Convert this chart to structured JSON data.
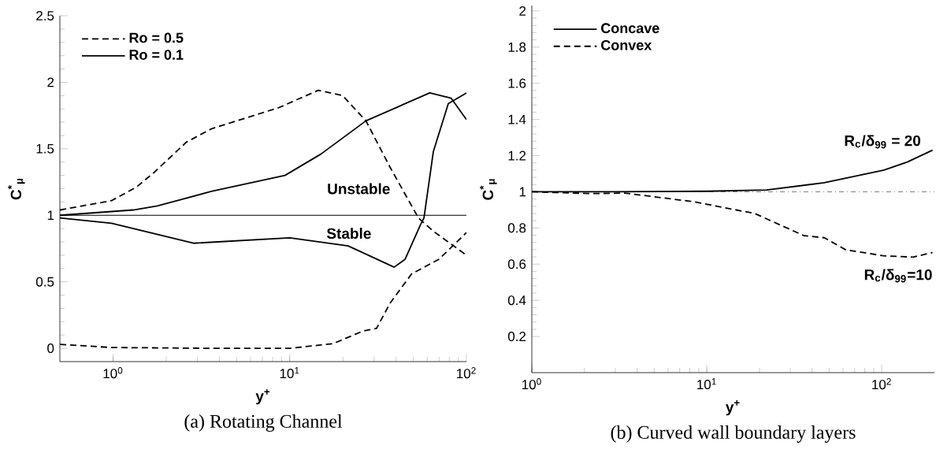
{
  "chart_data": [
    {
      "type": "line",
      "title": "(a) Rotating Channel",
      "xlabel": "y$^{+}$",
      "ylabel": "C$^{*}$$_{μ}$",
      "log": "x",
      "xlim": [
        0.5,
        100
      ],
      "ylim": [
        -0.1,
        2.5
      ],
      "xticks": [
        {
          "value": 1,
          "label": "10$^{0}$"
        },
        {
          "value": 10,
          "label": "10$^{1}$"
        },
        {
          "value": 100,
          "label": "10$^{2}$"
        }
      ],
      "yticks": [
        0,
        0.5,
        1,
        1.5,
        2,
        2.5
      ],
      "legend": "top left",
      "ref_lines": [
        {
          "axis": "y",
          "value": 1,
          "color": "#000000",
          "line_style": "solid"
        }
      ],
      "annotations": [
        "Unstable",
        "Stable"
      ],
      "series": [
        {
          "name": "Ro = 0.5",
          "color": "#000000",
          "line_style": "dashed",
          "x": [
            0.5,
            0.98,
            1.35,
            1.7,
            2.6,
            3.6,
            8.7,
            14.5,
            19.9,
            27,
            37,
            53.5,
            65,
            100,
            null,
            0.5,
            0.98,
            3.6,
            10,
            17.6,
            26,
            31,
            37,
            49,
            70,
            100
          ],
          "values": [
            1.04,
            1.11,
            1.21,
            1.32,
            1.55,
            1.65,
            1.81,
            1.94,
            1.9,
            1.71,
            1.36,
            0.98,
            0.88,
            0.7,
            null,
            0.03,
            0.006,
            0.0,
            0.0,
            0.035,
            0.13,
            0.15,
            0.34,
            0.56,
            0.67,
            0.87
          ]
        },
        {
          "name": "Ro = 0.1",
          "color": "#000000",
          "line_style": "solid",
          "x": [
            0.5,
            1.3,
            1.78,
            3.6,
            9.4,
            15,
            27,
            62,
            82,
            100,
            null,
            0.5,
            0.98,
            2.85,
            10,
            21.4,
            39,
            45,
            55,
            57.5,
            65,
            79,
            100
          ],
          "values": [
            1.0,
            1.04,
            1.07,
            1.18,
            1.3,
            1.46,
            1.71,
            1.92,
            1.88,
            1.72,
            null,
            0.98,
            0.94,
            0.79,
            0.83,
            0.77,
            0.61,
            0.67,
            0.93,
            0.98,
            1.48,
            1.84,
            1.92
          ]
        }
      ]
    },
    {
      "type": "line",
      "title": "(b) Curved wall boundary layers",
      "xlabel": "y$^{+}$",
      "ylabel": "C$^{*}$$_{μ}$",
      "log": "x",
      "xlim": [
        1,
        200
      ],
      "ylim": [
        0,
        2.03
      ],
      "xticks": [
        {
          "value": 1,
          "label": "10$^{0}$"
        },
        {
          "value": 10,
          "label": "10$^{1}$"
        },
        {
          "value": 100,
          "label": "10$^{2}$"
        }
      ],
      "yticks": [
        0.2,
        0.4,
        0.6,
        0.8,
        1,
        1.2,
        1.4,
        1.6,
        1.8,
        2
      ],
      "legend": "top left",
      "ref_lines": [
        {
          "axis": "y",
          "value": 1,
          "color": "#808080",
          "line_style": "dashdot"
        }
      ],
      "annotations": [
        "R$_{c}$/δ$_{99}$ = 20",
        "R$_{c}$/δ$_{99}$=10"
      ],
      "series": [
        {
          "name": "Concave",
          "color": "#000000",
          "line_style": "solid",
          "x": [
            1,
            3,
            10,
            22,
            47,
            103,
            140,
            195
          ],
          "values": [
            1.0,
            1.0,
            1.003,
            1.01,
            1.05,
            1.12,
            1.165,
            1.23
          ]
        },
        {
          "name": "Convex",
          "color": "#000000",
          "line_style": "dashed",
          "x": [
            1,
            2.2,
            3.4,
            8.4,
            18.8,
            36,
            47,
            62,
            102,
            151,
            195
          ],
          "values": [
            1.0,
            0.99,
            0.993,
            0.945,
            0.88,
            0.757,
            0.746,
            0.68,
            0.646,
            0.639,
            0.664
          ]
        }
      ]
    }
  ]
}
